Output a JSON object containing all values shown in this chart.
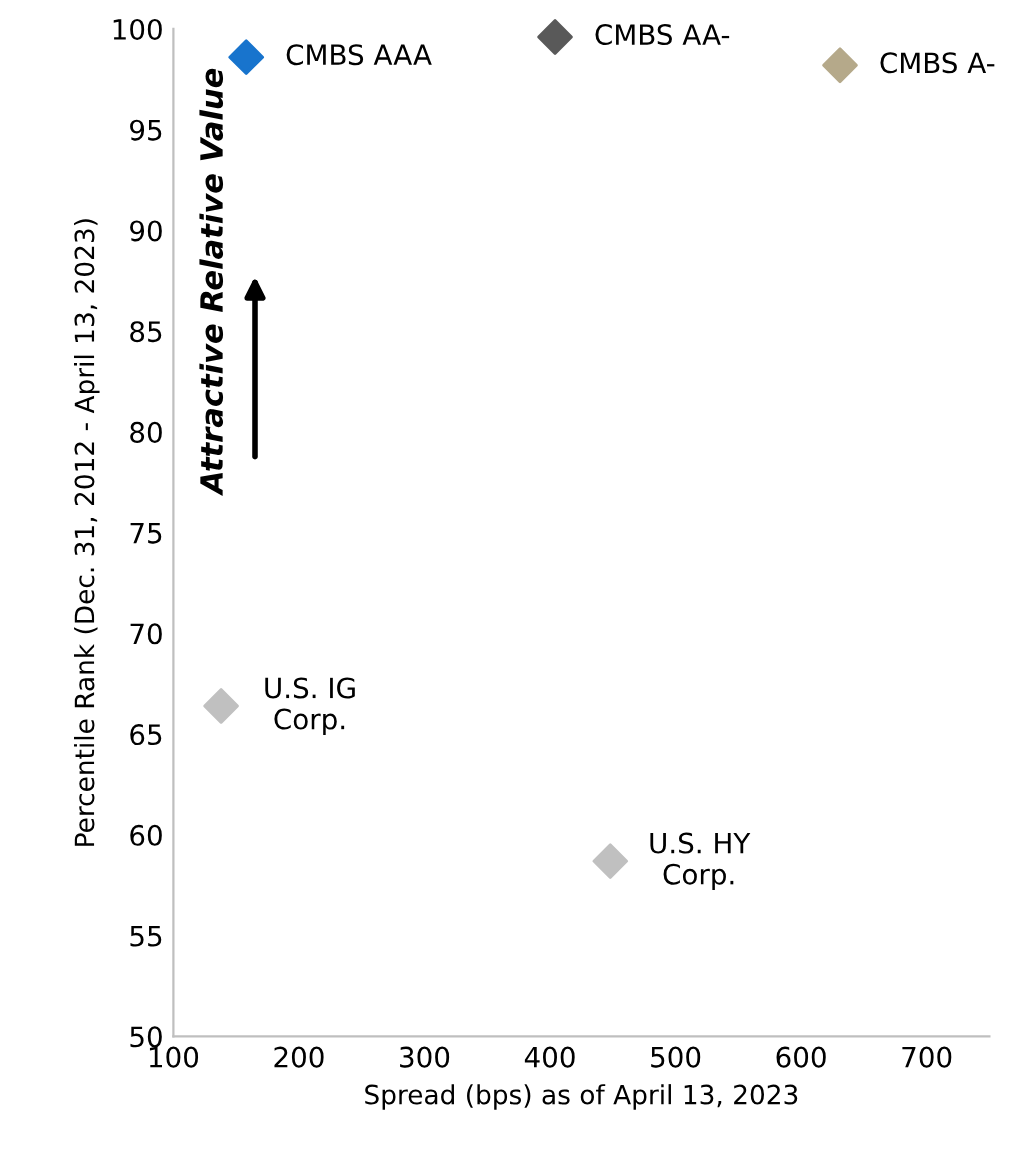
{
  "chart_data": {
    "type": "scatter",
    "xlabel": "Spread (bps) as of April 13, 2023",
    "ylabel": "Percentile Rank (Dec. 31, 2012 - April 13, 2023)",
    "series": [
      {
        "name": "CMBS AAA",
        "color": "#1874cd",
        "x": [
          158
        ],
        "values": [
          98.6
        ]
      },
      {
        "name": "CMBS AA-",
        "color": "#595959",
        "x": [
          404
        ],
        "values": [
          99.6
        ]
      },
      {
        "name": "CMBS A-",
        "color": "#b5a98a",
        "x": [
          631
        ],
        "values": [
          98.2
        ]
      },
      {
        "name": "U.S. IG\nCorp.",
        "color": "#c0c0c0",
        "x": [
          138
        ],
        "values": [
          66.4
        ]
      },
      {
        "name": "U.S. HY\nCorp.",
        "color": "#c0c0c0",
        "x": [
          448
        ],
        "values": [
          58.7
        ]
      }
    ],
    "annotations": [
      "Attractive Relative Value"
    ],
    "xlim": [
      100,
      750
    ],
    "xticks": [
      100,
      200,
      300,
      400,
      500,
      600,
      700
    ],
    "ylim": [
      50,
      100
    ],
    "yticks": [
      50,
      55,
      60,
      65,
      70,
      75,
      80,
      85,
      90,
      95,
      100
    ],
    "grid": false,
    "legend": false,
    "marker": "diamond"
  }
}
